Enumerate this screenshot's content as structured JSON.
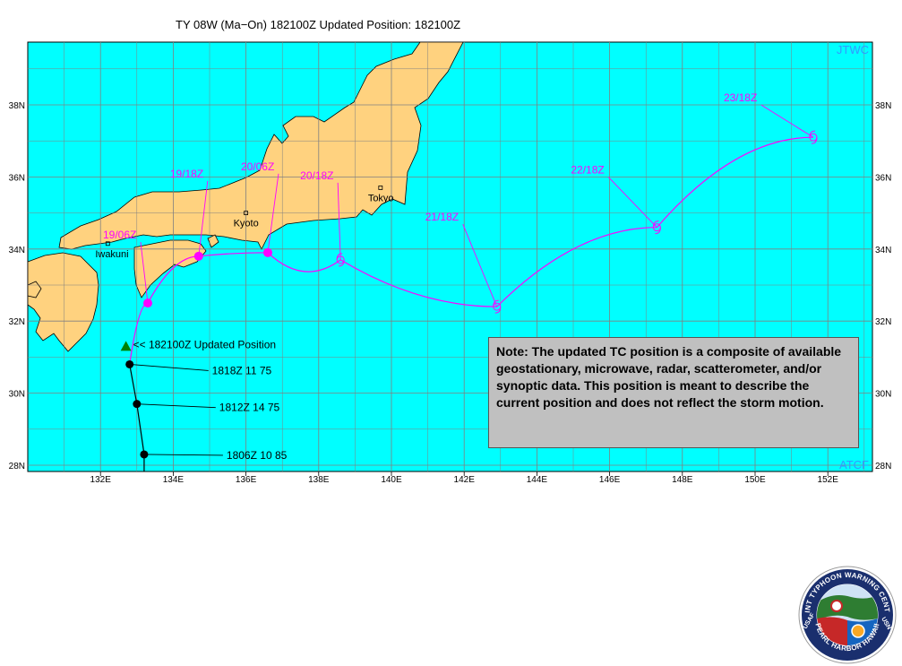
{
  "title": "TY 08W (Ma−On) 182100Z Updated Position: 182100Z",
  "agency_labels": {
    "top_right": "JTWC",
    "bottom_right": "ATCF"
  },
  "axes": {
    "lon_ticks": [
      "132E",
      "134E",
      "136E",
      "138E",
      "140E",
      "142E",
      "144E",
      "146E",
      "148E",
      "150E",
      "152E"
    ],
    "lat_ticks": [
      "28N",
      "30N",
      "32N",
      "34N",
      "36N",
      "38N"
    ]
  },
  "cities": [
    {
      "name": "Kyoto",
      "lon": 136.0,
      "lat": 35.0
    },
    {
      "name": "Tokyo",
      "lon": 139.7,
      "lat": 35.7
    },
    {
      "name": "Iwakuni",
      "lon": 132.2,
      "lat": 34.15
    }
  ],
  "forecast_track": [
    {
      "label": "19/06Z",
      "lon": 133.3,
      "lat": 32.5,
      "type": "forecast-dot"
    },
    {
      "label": "19/18Z",
      "lon": 134.7,
      "lat": 33.8,
      "type": "forecast-dot"
    },
    {
      "label": "20/06Z",
      "lon": 136.6,
      "lat": 33.9,
      "type": "forecast-dot"
    },
    {
      "label": "20/18Z",
      "lon": 138.6,
      "lat": 33.7,
      "type": "typhoon-symbol"
    },
    {
      "label": "21/18Z",
      "lon": 142.9,
      "lat": 32.4,
      "type": "typhoon-symbol"
    },
    {
      "label": "22/18Z",
      "lon": 147.3,
      "lat": 34.6,
      "type": "typhoon-symbol"
    },
    {
      "label": "23/18Z",
      "lon": 151.6,
      "lat": 37.1,
      "type": "typhoon-symbol"
    }
  ],
  "past_track": [
    {
      "label": "1818Z 11  75",
      "lon": 132.8,
      "lat": 30.8
    },
    {
      "label": "1812Z 14  75",
      "lon": 133.0,
      "lat": 29.7
    },
    {
      "label": "1806Z 10  85",
      "lon": 133.2,
      "lat": 28.3
    }
  ],
  "updated_position": {
    "label": "<< 182100Z Updated Position",
    "lon": 132.7,
    "lat": 31.3
  },
  "note": "Note:  The updated TC position is a composite of available geostationary, microwave, radar, scatterometer, and/or synoptic data.   This position is meant to describe the current position and does not reflect the storm motion.",
  "seal": {
    "ring_text": "JOINT TYPHOON WARNING CENTER",
    "bottom_text": "PEARL HARBOR HAWAII",
    "left_text": "USAF",
    "right_text": "USN"
  },
  "colors": {
    "ocean": "#00ffff",
    "land": "#ffd27f",
    "forecast": "#ff00ff",
    "past": "#000000",
    "updated": "#008000",
    "grid": "#808080",
    "agency": "#3399ff"
  }
}
